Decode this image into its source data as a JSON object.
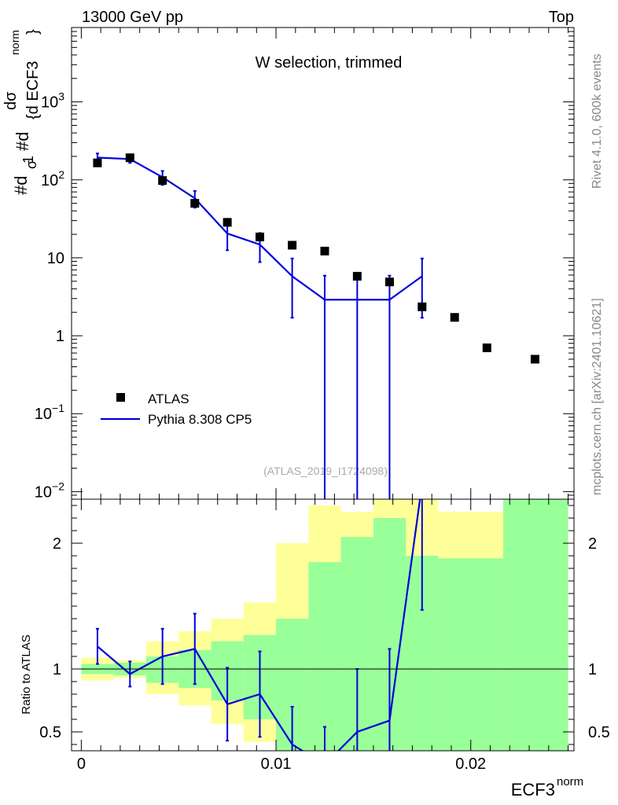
{
  "header": {
    "left": "13000 GeV pp",
    "right": "Top",
    "side_top": "Rivet 4.1.0,  600k events",
    "side_bottom": "mcplots.cern.ch [arXiv:2401.10621]",
    "watermark": "(ATLAS_2019_I1724098)"
  },
  "colors": {
    "data": "#000000",
    "mc": "#0000dd",
    "band_inner": "#99ff99",
    "band_outer": "#ffff99"
  },
  "chart_data": [
    {
      "type": "scatter",
      "title": "W selection, trimmed",
      "xlabel": "",
      "ylabel": "#d1/σ #dσ/{d ECF3^norm}",
      "yscale": "log",
      "xlim": [
        -0.0005,
        0.0253
      ],
      "ylim": [
        0.008,
        9000
      ],
      "yticks": [
        {
          "value": 0.01,
          "base": "10",
          "exp": "−2"
        },
        {
          "value": 0.1,
          "base": "10",
          "exp": "−1"
        },
        {
          "value": 1,
          "base": "1",
          "exp": ""
        },
        {
          "value": 10,
          "base": "10",
          "exp": ""
        },
        {
          "value": 100,
          "base": "10",
          "exp": "2"
        },
        {
          "value": 1000,
          "base": "10",
          "exp": "3"
        }
      ],
      "legend": [
        "ATLAS",
        "Pythia 8.308 CP5"
      ],
      "legend_position": "bottom-left",
      "series": [
        {
          "name": "ATLAS",
          "x": [
            0.00083,
            0.0025,
            0.00417,
            0.00583,
            0.0075,
            0.00917,
            0.01083,
            0.0125,
            0.01417,
            0.01583,
            0.0175,
            0.01917,
            0.02083,
            0.0233
          ],
          "y": [
            165,
            192,
            98,
            50,
            28.5,
            18.5,
            14.5,
            12.2,
            5.8,
            4.9,
            2.35,
            1.72,
            0.7,
            0.5
          ]
        },
        {
          "name": "Pythia 8.308 CP5",
          "bin_edges": [
            0.0,
            0.00167,
            0.00333,
            0.005,
            0.00667,
            0.00833,
            0.01,
            0.01167,
            0.01333,
            0.015,
            0.01667,
            0.01833
          ],
          "x": [
            0.00083,
            0.0025,
            0.00417,
            0.00583,
            0.0075,
            0.00917,
            0.01083,
            0.0125,
            0.01417,
            0.01583,
            0.0175
          ],
          "y": [
            193,
            185,
            108,
            58,
            20.5,
            14.8,
            5.8,
            2.9,
            2.9,
            2.9,
            5.8
          ],
          "err_up": [
            25,
            20,
            22,
            14,
            8,
            6,
            4,
            3,
            3,
            3,
            4
          ],
          "err_down": [
            25,
            20,
            22,
            14,
            8,
            6,
            4.1,
            2.9,
            2.9,
            2.9,
            4.1
          ]
        }
      ]
    },
    {
      "type": "line",
      "xlabel": "ECF3^norm",
      "ylabel": "Ratio to ATLAS",
      "xlim": [
        -0.0005,
        0.0253
      ],
      "ylim": [
        0.35,
        2.35
      ],
      "xticks": [
        0,
        0.01,
        0.02
      ],
      "xticklabels": [
        "0",
        "0.01",
        "0.02"
      ],
      "yticks": [
        0.5,
        1,
        2
      ],
      "yticklabels": [
        "0.5",
        "1",
        "2"
      ],
      "band_edges": [
        0.0,
        0.00167,
        0.00333,
        0.005,
        0.00667,
        0.00833,
        0.01,
        0.01167,
        0.01333,
        0.015,
        0.01667,
        0.01833,
        0.02167,
        0.025
      ],
      "band_inner_lo": [
        0.96,
        0.95,
        0.89,
        0.85,
        0.75,
        0.6,
        0.3,
        0.3,
        0.3,
        0.3,
        0.3,
        0.3,
        0.3
      ],
      "band_inner_hi": [
        1.04,
        1.05,
        1.1,
        1.15,
        1.22,
        1.27,
        1.4,
        1.85,
        2.05,
        2.2,
        1.9,
        1.88,
        2.35
      ],
      "band_outer_lo": [
        0.91,
        0.93,
        0.8,
        0.71,
        0.56,
        0.42,
        0.3,
        0.3,
        0.3,
        0.3,
        0.3,
        0.3,
        0.3
      ],
      "band_outer_hi": [
        1.09,
        1.07,
        1.22,
        1.3,
        1.4,
        1.53,
        2.0,
        2.3,
        2.25,
        2.35,
        2.35,
        2.25,
        2.35
      ],
      "series": [
        {
          "name": "Pythia 8.308 CP5 / ATLAS",
          "x": [
            0.00083,
            0.0025,
            0.00417,
            0.00583,
            0.0075,
            0.00917,
            0.01083,
            0.0125,
            0.01417,
            0.01583,
            0.0175
          ],
          "y": [
            1.18,
            0.96,
            1.1,
            1.16,
            0.72,
            0.8,
            0.4,
            0.24,
            0.5,
            0.59,
            2.47
          ],
          "err_up": [
            0.14,
            0.1,
            0.22,
            0.28,
            0.29,
            0.34,
            0.3,
            0.3,
            0.5,
            0.57,
            1.0
          ],
          "err_down": [
            0.14,
            0.1,
            0.22,
            0.28,
            0.29,
            0.34,
            0.3,
            0.24,
            0.5,
            0.59,
            1.0
          ]
        }
      ],
      "reference_line": 1
    }
  ]
}
